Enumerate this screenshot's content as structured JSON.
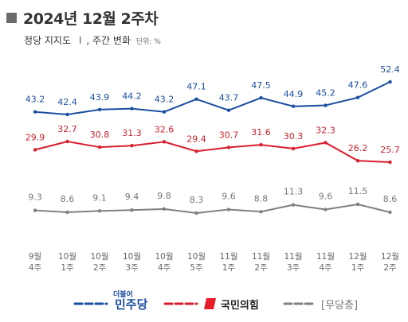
{
  "header": {
    "title": "2024년 12월 2주차",
    "subtitle_main": "정당 지지도",
    "subtitle_sep": "Ⅰ",
    "subtitle_sub": ", 주간 변화",
    "unit": "단위: %"
  },
  "legend": {
    "dp_small": "더불어",
    "dp": "민주당",
    "ppp": "국민의힘",
    "ind": "[무당층]"
  },
  "chart_data": {
    "type": "line",
    "categories": [
      [
        "9월",
        "4주"
      ],
      [
        "10월",
        "1주"
      ],
      [
        "10월",
        "2주"
      ],
      [
        "10월",
        "3주"
      ],
      [
        "10월",
        "4주"
      ],
      [
        "10월",
        "5주"
      ],
      [
        "11월",
        "1주"
      ],
      [
        "11월",
        "2주"
      ],
      [
        "11월",
        "3주"
      ],
      [
        "11월",
        "4주"
      ],
      [
        "12월",
        "1주"
      ],
      [
        "12월",
        "2주"
      ]
    ],
    "series": [
      {
        "name": "민주당",
        "color": "#1b4fa0",
        "values": [
          43.2,
          42.4,
          43.9,
          44.2,
          43.2,
          47.1,
          43.7,
          47.5,
          44.9,
          45.2,
          47.6,
          52.4
        ]
      },
      {
        "name": "국민의힘",
        "color": "#d81e2e",
        "values": [
          29.9,
          32.7,
          30.8,
          31.3,
          32.6,
          29.4,
          30.7,
          31.6,
          30.3,
          32.3,
          26.2,
          25.7
        ]
      },
      {
        "name": "[무당층]",
        "color": "#808080",
        "values": [
          9.3,
          8.6,
          9.1,
          9.4,
          9.8,
          8.3,
          9.6,
          8.8,
          11.3,
          9.6,
          11.5,
          8.6
        ]
      }
    ]
  }
}
